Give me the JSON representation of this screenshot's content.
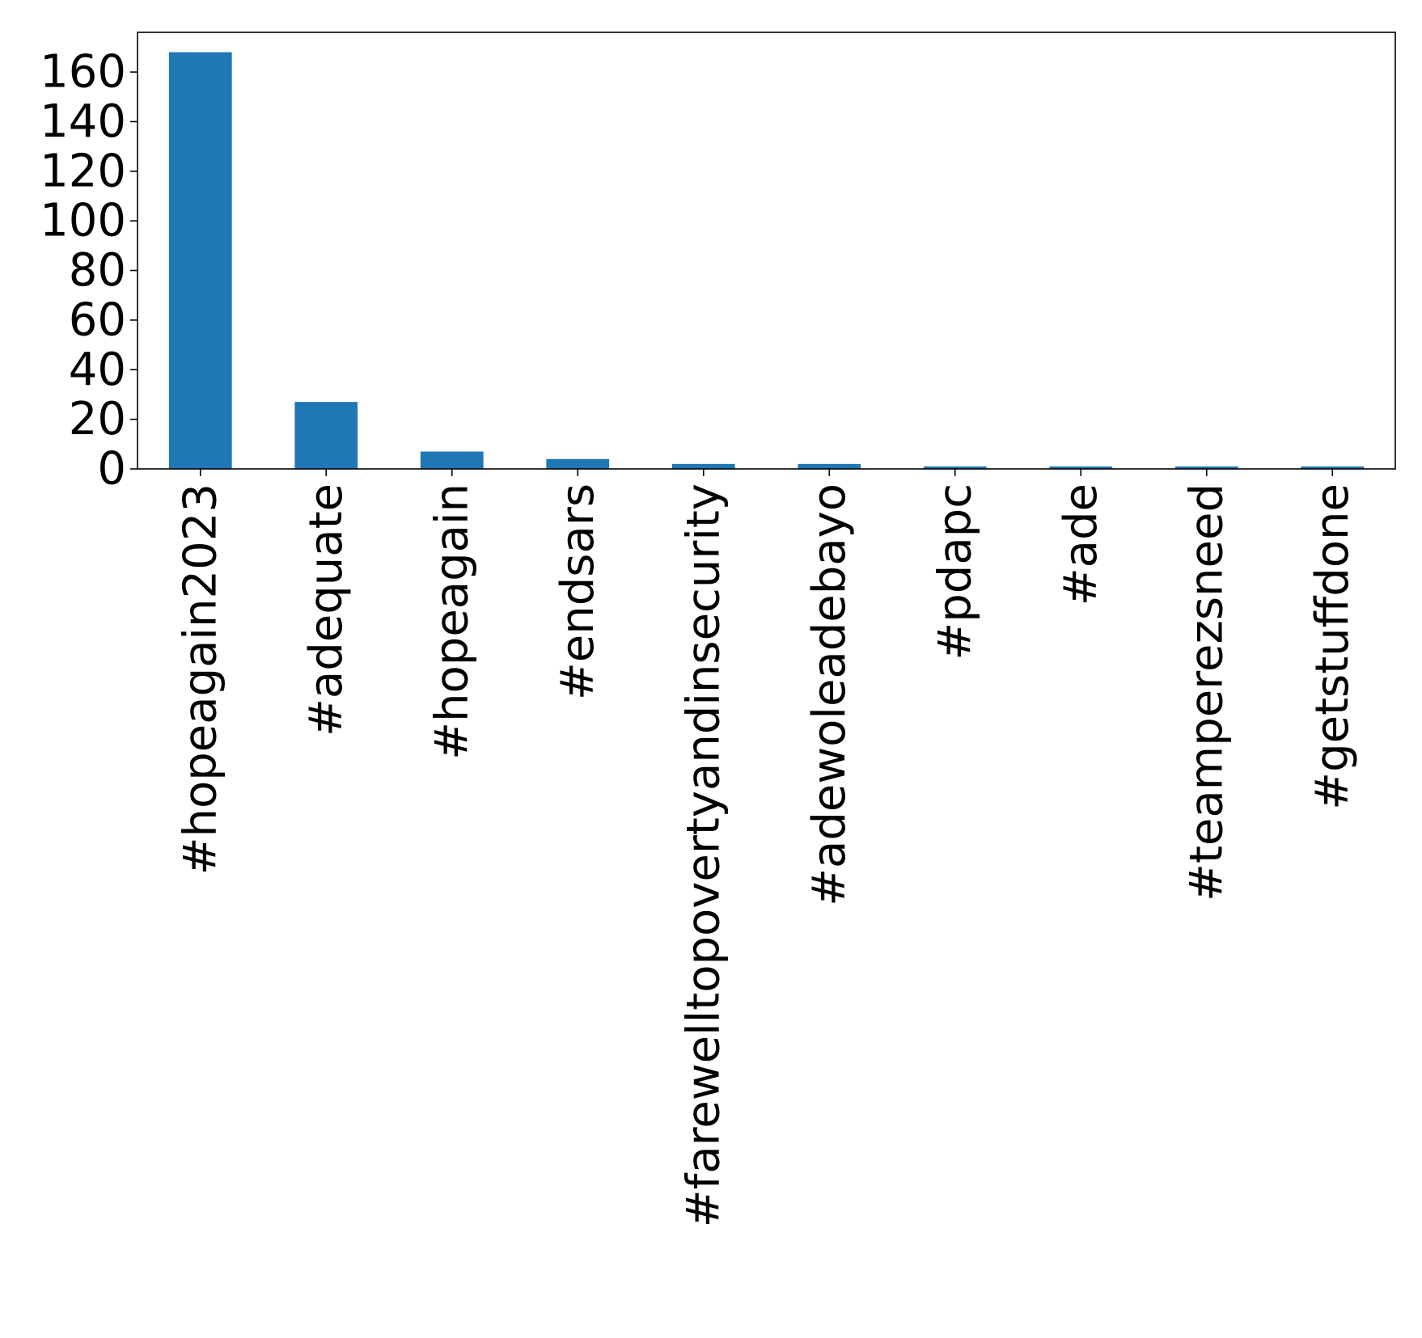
{
  "chart_data": {
    "type": "bar",
    "title": "",
    "xlabel": "",
    "ylabel": "",
    "categories": [
      "#hopeagain2023",
      "#adequate",
      "#hopeagain",
      "#endsars",
      "#farewelltopovertyandinsecurity",
      "#adewoleadebayo",
      "#pdapc",
      "#ade",
      "#teamperezsneed",
      "#getstuffdone"
    ],
    "series": [
      {
        "values": [
          168,
          27,
          7,
          4,
          2,
          2,
          1,
          1,
          1,
          1
        ]
      }
    ],
    "ylim": [
      0,
      176
    ],
    "yticks": [
      0,
      20,
      40,
      60,
      80,
      100,
      120,
      140,
      160
    ],
    "grid": false,
    "legend": "none",
    "colors": {
      "bar": "#1f77b4",
      "axis": "#000000",
      "text": "#000000"
    }
  }
}
